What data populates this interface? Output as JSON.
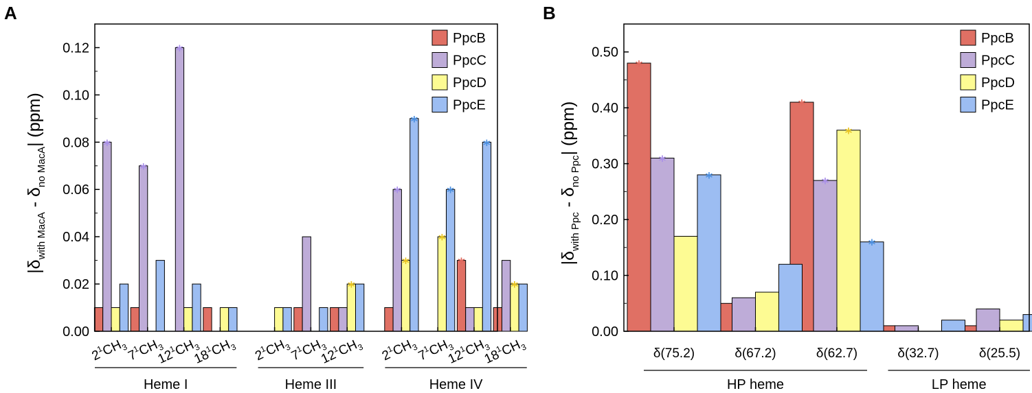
{
  "series_colors": {
    "PpcB": "#E07064",
    "PpcC": "#BEACD8",
    "PpcD": "#FDFB93",
    "PpcE": "#9CBDF2"
  },
  "star_colors": {
    "PpcB": "#E06A5E",
    "PpcC": "#A98FE8",
    "PpcD": "#E8C320",
    "PpcE": "#4A8FE0"
  },
  "chart_data": [
    {
      "panel": "A",
      "type": "bar",
      "title": "",
      "ylabel": {
        "bar": "|δ",
        "sub1": "with MacA",
        "mid": " - δ",
        "sub2": "no MacA",
        "end": "| (ppm)"
      },
      "ylim": [
        0,
        0.13
      ],
      "yticks": [
        "0.00",
        "0.02",
        "0.04",
        "0.06",
        "0.08",
        "0.10",
        "0.12"
      ],
      "legend": [
        "PpcB",
        "PpcC",
        "PpcD",
        "PpcE"
      ],
      "legend_position": "top-right",
      "categories": [
        {
          "pre": "2",
          "sup": "1",
          "main": "CH",
          "sub": "3"
        },
        {
          "pre": "7",
          "sup": "1",
          "main": "CH",
          "sub": "3"
        },
        {
          "pre": "12",
          "sup": "1",
          "main": "CH",
          "sub": "3"
        },
        {
          "pre": "18",
          "sup": "1",
          "main": "CH",
          "sub": "3"
        },
        {
          "pre": "2",
          "sup": "1",
          "main": "CH",
          "sub": "3"
        },
        {
          "pre": "7",
          "sup": "1",
          "main": "CH",
          "sub": "3"
        },
        {
          "pre": "12",
          "sup": "1",
          "main": "CH",
          "sub": "3"
        },
        {
          "pre": "2",
          "sup": "1",
          "main": "CH",
          "sub": "3"
        },
        {
          "pre": "7",
          "sup": "1",
          "main": "CH",
          "sub": "3"
        },
        {
          "pre": "12",
          "sup": "1",
          "main": "CH",
          "sub": "3"
        },
        {
          "pre": "18",
          "sup": "1",
          "main": "CH",
          "sub": "3"
        }
      ],
      "groups": [
        {
          "label": "Heme I",
          "start": 0,
          "end": 3
        },
        {
          "label": "Heme III",
          "start": 4,
          "end": 6
        },
        {
          "label": "Heme IV",
          "start": 7,
          "end": 10
        }
      ],
      "series": [
        {
          "name": "PpcB",
          "values": [
            0.01,
            0.01,
            null,
            0.01,
            null,
            0.01,
            0.01,
            0.01,
            null,
            0.03,
            0.01
          ]
        },
        {
          "name": "PpcC",
          "values": [
            0.08,
            0.07,
            0.12,
            null,
            null,
            0.04,
            0.01,
            0.06,
            null,
            0.01,
            0.03
          ]
        },
        {
          "name": "PpcD",
          "values": [
            0.01,
            null,
            0.01,
            0.01,
            0.01,
            null,
            0.02,
            0.03,
            0.04,
            0.01,
            0.02
          ]
        },
        {
          "name": "PpcE",
          "values": [
            0.02,
            0.03,
            0.02,
            0.01,
            0.01,
            0.01,
            0.02,
            0.09,
            0.06,
            0.08,
            0.02
          ]
        }
      ],
      "significant": [
        {
          "series": "PpcC",
          "index": 0
        },
        {
          "series": "PpcC",
          "index": 1
        },
        {
          "series": "PpcC",
          "index": 2
        },
        {
          "series": "PpcD",
          "index": 6
        },
        {
          "series": "PpcC",
          "index": 7
        },
        {
          "series": "PpcD",
          "index": 7
        },
        {
          "series": "PpcE",
          "index": 7
        },
        {
          "series": "PpcD",
          "index": 8
        },
        {
          "series": "PpcE",
          "index": 8
        },
        {
          "series": "PpcB",
          "index": 9
        },
        {
          "series": "PpcE",
          "index": 9
        },
        {
          "series": "PpcD",
          "index": 10
        }
      ],
      "star_symbol": "*"
    },
    {
      "panel": "B",
      "type": "bar",
      "title": "",
      "ylabel": {
        "bar": "|δ",
        "sub1": "with Ppc",
        "mid": " - δ",
        "sub2": "no Ppc",
        "end": "| (ppm)"
      },
      "ylim": [
        0,
        0.55
      ],
      "yticks": [
        "0.00",
        "0.10",
        "0.20",
        "0.30",
        "0.40",
        "0.50"
      ],
      "legend": [
        "PpcB",
        "PpcC",
        "PpcD",
        "PpcE"
      ],
      "legend_position": "top-right",
      "categories": [
        "δ(75.2)",
        "δ(67.2)",
        "δ(62.7)",
        "δ(32.7)",
        "δ(25.5)"
      ],
      "groups": [
        {
          "label": "HP heme",
          "start": 0,
          "end": 2
        },
        {
          "label": "LP heme",
          "start": 3,
          "end": 4
        }
      ],
      "series": [
        {
          "name": "PpcB",
          "values": [
            0.48,
            0.05,
            0.41,
            0.01,
            0.01
          ]
        },
        {
          "name": "PpcC",
          "values": [
            0.31,
            0.06,
            0.27,
            0.01,
            0.04
          ]
        },
        {
          "name": "PpcD",
          "values": [
            0.17,
            0.07,
            0.36,
            null,
            0.02
          ]
        },
        {
          "name": "PpcE",
          "values": [
            0.28,
            0.12,
            0.16,
            0.02,
            0.03
          ]
        }
      ],
      "significant": [
        {
          "series": "PpcB",
          "index": 0
        },
        {
          "series": "PpcC",
          "index": 0
        },
        {
          "series": "PpcE",
          "index": 0
        },
        {
          "series": "PpcB",
          "index": 2
        },
        {
          "series": "PpcC",
          "index": 2
        },
        {
          "series": "PpcD",
          "index": 2
        },
        {
          "series": "PpcE",
          "index": 2
        }
      ],
      "star_symbol": "*"
    }
  ]
}
